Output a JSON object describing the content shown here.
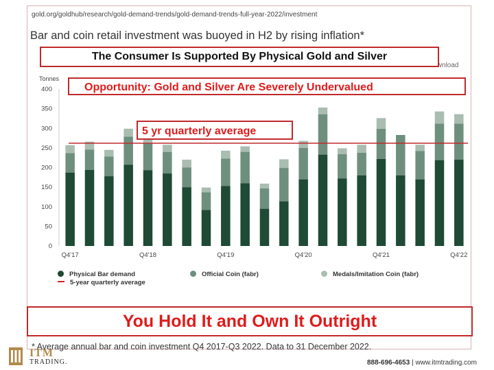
{
  "page": {
    "url": "gold.org/goldhub/research/gold-demand-trends/gold-demand-trends-full-year-2022/investment",
    "headline": "Bar and coin retail investment was buoyed in H2 by rising inflation*",
    "download_label": "Download",
    "footnote": "* Average annual bar and coin investment Q4 2017-Q3 2022. Data to 31 December 2022."
  },
  "callouts": {
    "consumer": "The Consumer Is Supported By Physical Gold and Silver",
    "opportunity": "Opportunity: Gold and Silver Are Severely Undervalued",
    "average": "5 yr quarterly average",
    "hold": "You Hold It and Own It Outright"
  },
  "branding": {
    "logo_text": "ITM",
    "logo_sub": "TRADING.",
    "phone": "888-696-4653",
    "separator": "|",
    "website": "www.itmtrading.com"
  },
  "colors": {
    "physical_bar": "#1f4a35",
    "official_coin": "#6e8f7d",
    "medals": "#a9bdb1",
    "average_line": "#c0282b",
    "callout_red": "#e01b1b"
  },
  "chart_data": {
    "type": "bar",
    "stacked": true,
    "ylabel": "Tonnes",
    "ylim": [
      0,
      400
    ],
    "yticks": [
      0,
      50,
      100,
      150,
      200,
      250,
      300,
      350,
      400
    ],
    "xtick_labels": [
      "Q4'17",
      "Q4'18",
      "Q4'19",
      "Q4'20",
      "Q4'21",
      "Q4'22"
    ],
    "xtick_indices": [
      0,
      4,
      8,
      12,
      16,
      20
    ],
    "categories": [
      "Q4'17",
      "Q1'18",
      "Q2'18",
      "Q3'18",
      "Q4'18",
      "Q1'19",
      "Q2'19",
      "Q3'19",
      "Q4'19",
      "Q1'20",
      "Q2'20",
      "Q3'20",
      "Q4'20",
      "Q1'21",
      "Q2'21",
      "Q3'21",
      "Q4'21",
      "Q1'22",
      "Q2'22",
      "Q3'22",
      "Q4'22"
    ],
    "series": [
      {
        "name": "Physical Bar demand",
        "values": [
          187,
          194,
          178,
          207,
          193,
          185,
          150,
          92,
          153,
          160,
          95,
          114,
          170,
          233,
          172,
          180,
          222,
          180,
          170,
          219,
          220
        ]
      },
      {
        "name": "Official Coin (fabr)",
        "values": [
          50,
          52,
          50,
          72,
          68,
          55,
          50,
          45,
          70,
          80,
          52,
          85,
          80,
          103,
          62,
          58,
          77,
          103,
          72,
          93,
          92
        ]
      },
      {
        "name": "Medals/Imitation Coin (fabr)",
        "values": [
          20,
          20,
          17,
          20,
          12,
          18,
          20,
          12,
          20,
          14,
          12,
          22,
          18,
          17,
          15,
          20,
          27,
          0,
          16,
          31,
          24
        ]
      }
    ],
    "average_line": {
      "name": "5-year quarterly average",
      "value": 262
    },
    "legend_position": "bottom",
    "grid": false
  }
}
